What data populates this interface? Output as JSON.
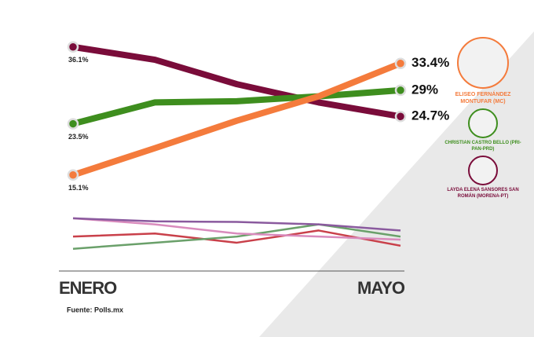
{
  "chart_data": {
    "type": "line",
    "categories": [
      "ENERO",
      null,
      null,
      null,
      "MAYO"
    ],
    "ylim": [
      0,
      38
    ],
    "series": [
      {
        "name": "ELISEO FERNÁNDEZ MONTUFAR (MC)",
        "color": "#f47b3c",
        "values": [
          15.1,
          19.5,
          24,
          28,
          33.4
        ],
        "value_labels": [
          "15.1%",
          null,
          null,
          null,
          "33.4%"
        ]
      },
      {
        "name": "CHRISTIAN CASTRO BELLO (PRI-PAN-PRD)",
        "color": "#3e8e1e",
        "values": [
          23.5,
          27,
          27.2,
          28,
          29
        ],
        "value_labels": [
          "23.5%",
          null,
          null,
          null,
          "29%"
        ]
      },
      {
        "name": "LAYDA ELENA SANSORES SAN ROMÁN (MORENA-PT)",
        "color": "#7a0c3a",
        "values": [
          36.1,
          34,
          30,
          27,
          24.7
        ],
        "value_labels": [
          "36.1%",
          null,
          null,
          null,
          "24.7%"
        ]
      },
      {
        "color": "#8a5a9e",
        "values": [
          8,
          7.5,
          7.4,
          7,
          6
        ]
      },
      {
        "color": "#d98bbd",
        "values": [
          8,
          7,
          5.5,
          5,
          4.5
        ]
      },
      {
        "color": "#6aa06a",
        "values": [
          3,
          4,
          5,
          7,
          5
        ]
      },
      {
        "color": "#c9404a",
        "values": [
          5,
          5.5,
          4,
          6,
          3.5
        ]
      }
    ],
    "source": "Fuente: Polls.mx"
  }
}
